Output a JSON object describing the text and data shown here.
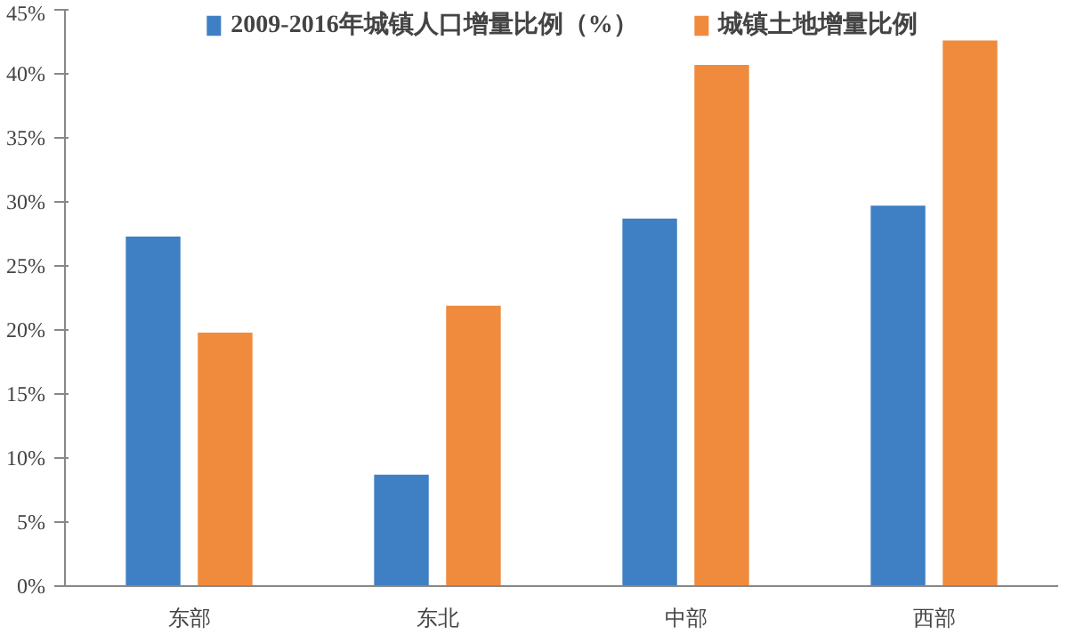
{
  "chart_data": {
    "type": "bar",
    "categories": [
      "东部",
      "东北",
      "中部",
      "西部"
    ],
    "series": [
      {
        "name": "2009-2016年城镇人口增量比例（%）",
        "color": "#3f7fc4",
        "values": [
          27.3,
          8.7,
          28.7,
          29.7
        ]
      },
      {
        "name": "城镇土地增量比例",
        "color": "#f08a3c",
        "values": [
          19.8,
          21.9,
          40.7,
          42.6
        ]
      }
    ],
    "ylim": [
      0,
      45
    ],
    "yticks": [
      {
        "value": 0,
        "label": "0%"
      },
      {
        "value": 5,
        "label": "5%"
      },
      {
        "value": 10,
        "label": "10%"
      },
      {
        "value": 15,
        "label": "15%"
      },
      {
        "value": 20,
        "label": "20%"
      },
      {
        "value": 25,
        "label": "25%"
      },
      {
        "value": 30,
        "label": "30%"
      },
      {
        "value": 35,
        "label": "35%"
      },
      {
        "value": 40,
        "label": "40%"
      },
      {
        "value": 45,
        "label": "45%"
      }
    ],
    "grid": false,
    "legend": "top"
  }
}
